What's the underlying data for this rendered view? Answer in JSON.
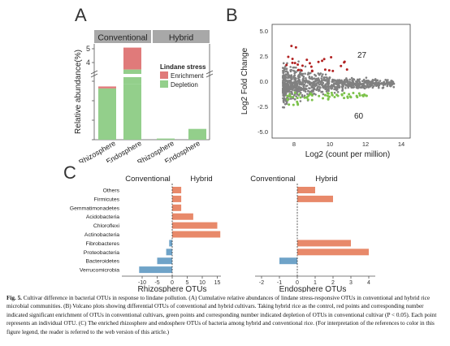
{
  "panels": {
    "a": "A",
    "b": "B",
    "c": "C"
  },
  "panel_a": {
    "headers": [
      "Conventional",
      "Hybrid"
    ],
    "ylabel": "Relative abundance(%)",
    "ticks_upper": [
      "4",
      "5"
    ],
    "ticks_lower": [
      "0.0",
      "0.5",
      "1.0",
      "1.5"
    ],
    "legend_title": "Lindane stress",
    "legend_items": [
      {
        "label": "Enrichment",
        "color": "#e07a7a"
      },
      {
        "label": "Depletion",
        "color": "#93cf8b"
      }
    ],
    "categories": [
      "Rhizosphere",
      "Endosphere",
      "Rhizosphere",
      "Endosphere"
    ],
    "chart_data": {
      "type": "bar",
      "categories": [
        "Conventional Rhizosphere",
        "Conventional Endosphere",
        "Hybrid Rhizosphere",
        "Hybrid Endosphere"
      ],
      "series": [
        {
          "name": "Depletion",
          "values": [
            1.33,
            1.45,
            0.03,
            0.28
          ]
        },
        {
          "name": "Enrichment",
          "values": [
            0.05,
            1.6,
            0.0,
            0.0
          ]
        }
      ],
      "ylabel": "Relative abundance(%)",
      "axis_break": [
        1.6,
        3.4
      ],
      "ylim": [
        0,
        5.2
      ]
    }
  },
  "panel_b": {
    "ylabel": "Log2 Fold Change",
    "xlabel": "Log2 (count per million)",
    "xticks": [
      "8",
      "10",
      "12",
      "14"
    ],
    "yticks": [
      "5.0",
      "2.5",
      "0.0",
      "-2.5",
      "-5.0"
    ],
    "up_count": "27",
    "down_count": "60",
    "colors": {
      "up": "#b22222",
      "down": "#7cc24a",
      "ns": "#808080"
    }
  },
  "panel_c": {
    "taxa": [
      "Others",
      "Firmicutes",
      "Gemmatimonadetes",
      "Acidobacteria",
      "Chloroflexi",
      "Actinobacteria",
      "Fibrobacteres",
      "Proteobacteria",
      "Bacteroidetes",
      "Verrucomicrobia"
    ],
    "header_left": "Conventional",
    "header_right": "Hybrid",
    "rhizo_label": "Rhizosphere OTUs",
    "endo_label": "Endosphere OTUs",
    "rhizo_ticks": [
      "-10",
      "-5",
      "0",
      "5",
      "10",
      "15"
    ],
    "endo_ticks": [
      "-2",
      "-1",
      "0",
      "1",
      "2",
      "3",
      "4"
    ],
    "colors": {
      "hybrid": "#e8896a",
      "conventional": "#6fa3c8"
    },
    "chart_data": [
      {
        "type": "bar",
        "name": "Rhizosphere OTUs",
        "categories": [
          "Others",
          "Firmicutes",
          "Gemmatimonadetes",
          "Acidobacteria",
          "Chloroflexi",
          "Actinobacteria",
          "Fibrobacteres",
          "Proteobacteria",
          "Bacteroidetes",
          "Verrucomicrobia"
        ],
        "values": [
          3,
          3,
          3,
          7,
          15,
          16,
          -1,
          -2,
          -5,
          -11
        ],
        "xlim": [
          -12,
          17
        ]
      },
      {
        "type": "bar",
        "name": "Endosphere OTUs",
        "categories": [
          "Others",
          "Firmicutes",
          "Gemmatimonadetes",
          "Acidobacteria",
          "Chloroflexi",
          "Actinobacteria",
          "Fibrobacteres",
          "Proteobacteria",
          "Bacteroidetes",
          "Verrucomicrobia"
        ],
        "values": [
          1,
          2,
          0,
          0,
          0,
          0,
          3,
          4,
          -1,
          0
        ],
        "xlim": [
          -2.6,
          4.6
        ]
      }
    ]
  },
  "caption": {
    "label": "Fig. 5.",
    "text": "Cultivar difference in bacterial OTUs in response to lindane pollution. (A) Cumulative relative abundances of lindane stress-responsive OTUs in conventional and hybrid rice microbial communities. (B) Volcano plots showing differential OTUs of conventional and hybrid cultivars. Taking hybrid rice as the control, red points and corresponding number indicated significant enrichment of OTUs in conventional cultivars, green points and corresponding number indicated depletion of OTUs in conventional cultivar (P < 0.05). Each point represents an individual OTU. (C) The enriched rhizosphere and endosphere OTUs of bacteria among hybrid and conventional rice. (For interpretation of the references to color in this figure legend, the reader is referred to the web version of this article.)"
  }
}
